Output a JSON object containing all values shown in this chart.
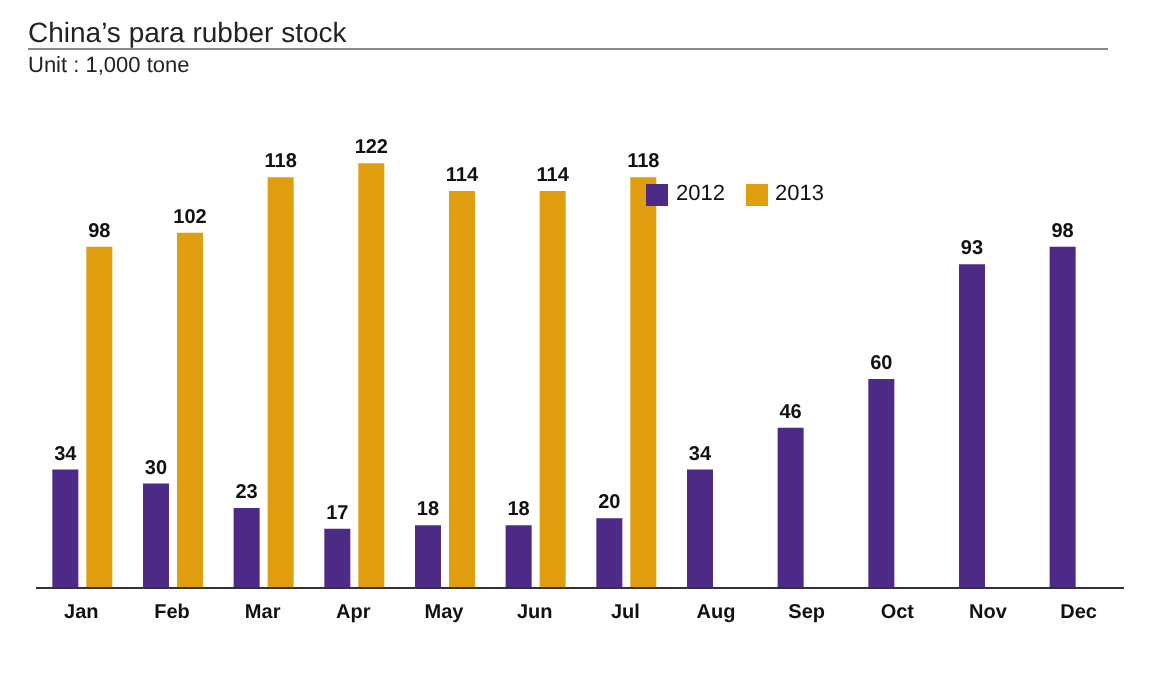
{
  "chart_data": {
    "type": "bar",
    "title": "China’s para rubber stock",
    "subtitle": "Unit : 1,000 tone",
    "categories": [
      "Jan",
      "Feb",
      "Mar",
      "Apr",
      "May",
      "Jun",
      "Jul",
      "Aug",
      "Sep",
      "Oct",
      "Nov",
      "Dec"
    ],
    "series": [
      {
        "name": "2012",
        "color": "#4e2a87",
        "values": [
          34,
          30,
          23,
          17,
          18,
          18,
          20,
          34,
          46,
          60,
          93,
          98
        ]
      },
      {
        "name": "2013",
        "color": "#e09e0e",
        "values": [
          98,
          102,
          118,
          122,
          114,
          114,
          118,
          null,
          null,
          null,
          null,
          null
        ]
      }
    ],
    "data_labels": true,
    "legend": "top right",
    "grid": false
  }
}
